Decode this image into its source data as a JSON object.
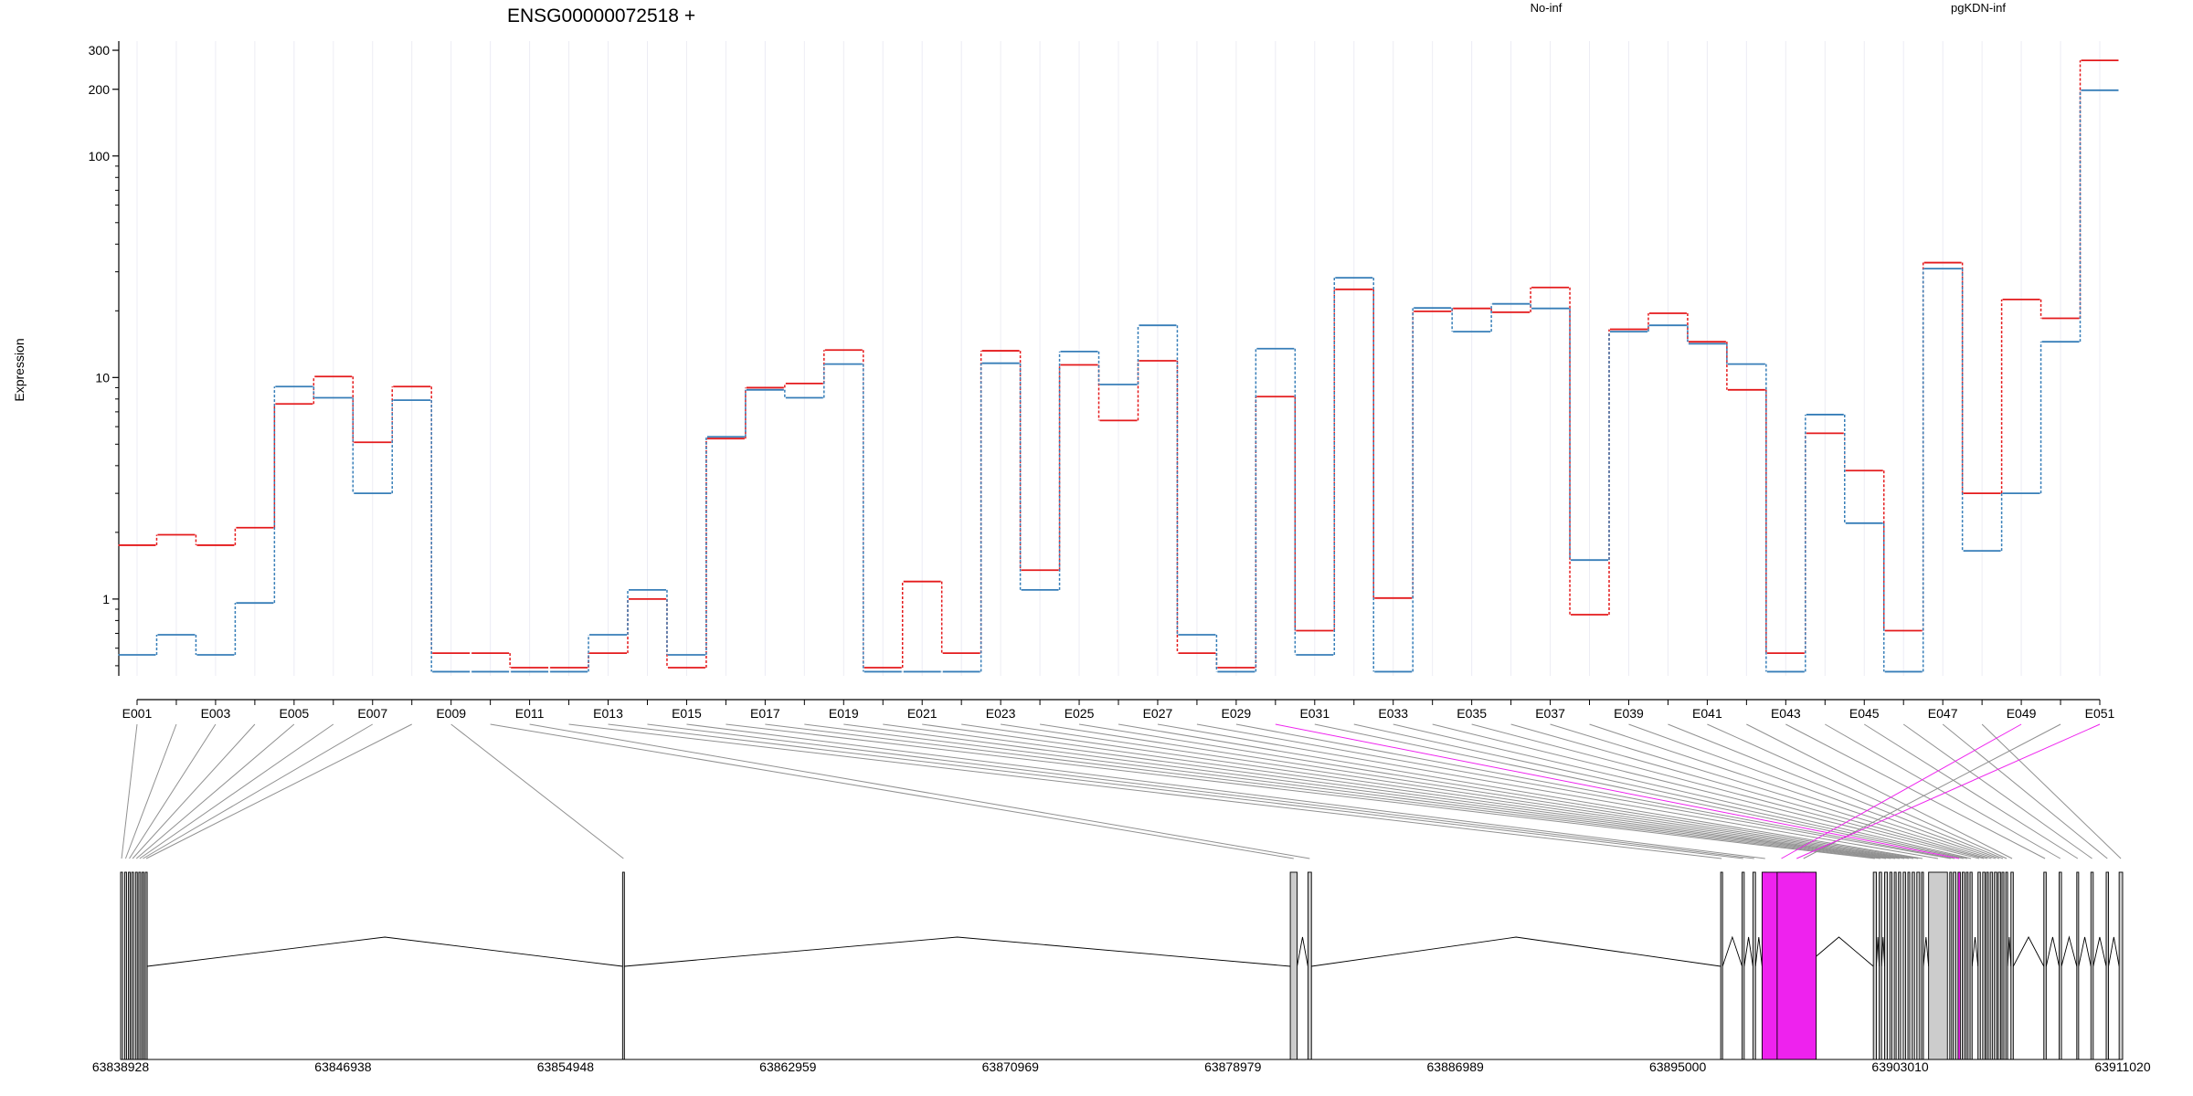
{
  "chart_data": {
    "type": "line",
    "title": "ENSG00000072518 +",
    "ylabel": "Expression",
    "xlabel": "",
    "yscale": "log",
    "ylim": [
      0.45,
      330
    ],
    "yticks": [
      1,
      10,
      100,
      200,
      300
    ],
    "ytick_labels": [
      "1",
      "10",
      "100",
      "200",
      "300"
    ],
    "grid": "vertical",
    "legend_position": "top",
    "colors": {
      "No-inf": "#e41a1c",
      "pgKDN-inf": "#377eb8",
      "highlight": "#ee22ee",
      "exon_fill": "#cccccc"
    },
    "categories": [
      "E001",
      "E002",
      "E003",
      "E004",
      "E005",
      "E006",
      "E007",
      "E008",
      "E009",
      "E010",
      "E011",
      "E012",
      "E013",
      "E014",
      "E015",
      "E016",
      "E017",
      "E018",
      "E019",
      "E020",
      "E021",
      "E022",
      "E023",
      "E024",
      "E025",
      "E026",
      "E027",
      "E028",
      "E029",
      "E030",
      "E031",
      "E032",
      "E033",
      "E034",
      "E035",
      "E036",
      "E037",
      "E038",
      "E039",
      "E040",
      "E041",
      "E042",
      "E043",
      "E044",
      "E045",
      "E046",
      "E047",
      "E048",
      "E049",
      "E050",
      "E051"
    ],
    "labeled_categories": [
      "E001",
      "E003",
      "E005",
      "E007",
      "E009",
      "E011",
      "E013",
      "E015",
      "E017",
      "E019",
      "E021",
      "E023",
      "E025",
      "E027",
      "E029",
      "E031",
      "E033",
      "E035",
      "E037",
      "E039",
      "E041",
      "E043",
      "E045",
      "E047",
      "E049",
      "E051"
    ],
    "series": [
      {
        "name": "No-inf",
        "color": "#e41a1c",
        "values": [
          1.75,
          1.95,
          1.75,
          2.1,
          7.6,
          10.1,
          5.1,
          9.1,
          0.57,
          0.57,
          0.49,
          0.49,
          0.57,
          1.0,
          0.49,
          5.3,
          9.0,
          9.4,
          13.3,
          0.49,
          1.2,
          0.57,
          13.2,
          1.35,
          11.4,
          6.4,
          11.9,
          0.57,
          0.49,
          8.2,
          0.72,
          25.0,
          1.01,
          19.9,
          20.5,
          19.7,
          25.5,
          0.85,
          16.5,
          19.5,
          14.5,
          8.8,
          0.57,
          5.6,
          3.8,
          0.72,
          33.0,
          3.0,
          22.5,
          18.5,
          270
        ]
      },
      {
        "name": "pgKDN-inf",
        "color": "#377eb8",
        "values": [
          0.56,
          0.69,
          0.56,
          0.96,
          9.1,
          8.1,
          3.0,
          7.9,
          0.47,
          0.47,
          0.47,
          0.47,
          0.69,
          1.1,
          0.56,
          5.4,
          8.8,
          8.1,
          11.5,
          0.47,
          0.47,
          0.47,
          11.6,
          1.1,
          13.1,
          9.3,
          17.2,
          0.69,
          0.47,
          13.5,
          0.56,
          28.2,
          0.47,
          20.6,
          16.1,
          21.5,
          20.5,
          1.5,
          16.1,
          17.2,
          14.2,
          11.5,
          0.47,
          6.8,
          2.2,
          0.47,
          31.0,
          1.65,
          3.0,
          14.5,
          198
        ]
      }
    ],
    "gene_model": {
      "coordinate_labels": [
        "63838928",
        "63846938",
        "63854948",
        "63862959",
        "63870969",
        "63878979",
        "63886989",
        "63895000",
        "63903010",
        "63911020"
      ],
      "start": 63838928,
      "end": 63911020,
      "highlighted_exons": [
        "E030",
        "E049",
        "E051"
      ]
    }
  }
}
